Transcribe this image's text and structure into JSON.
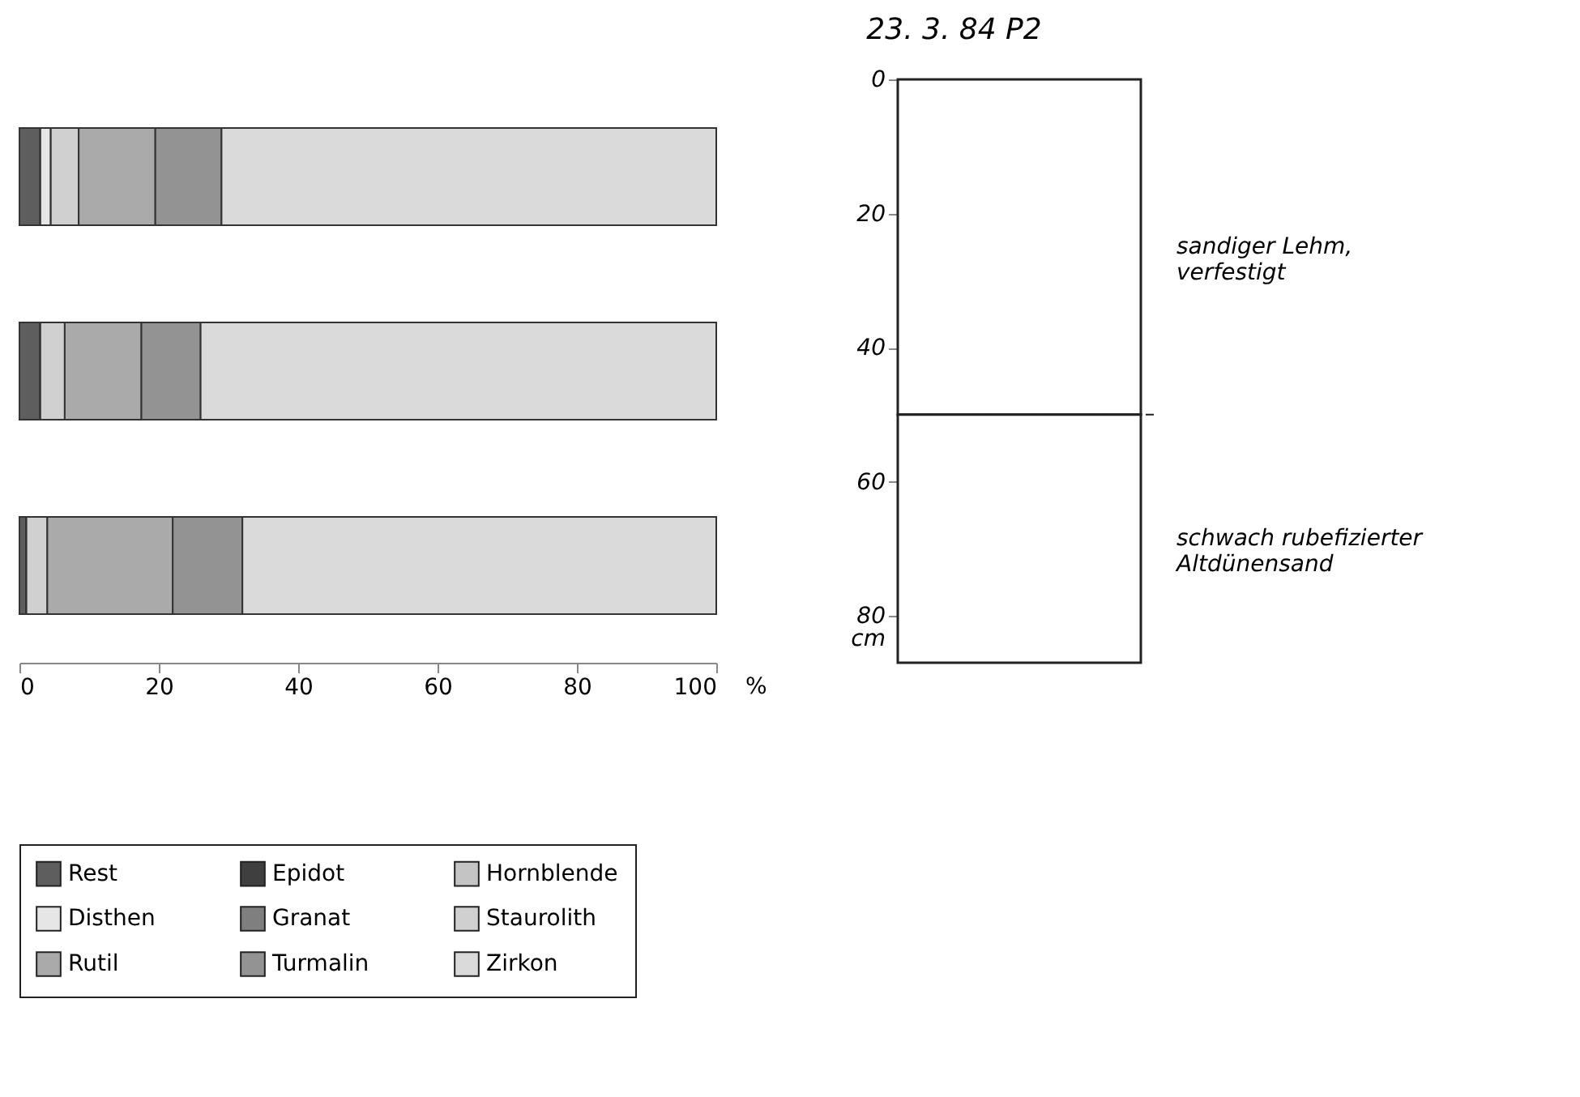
{
  "chart_data": [
    {
      "type": "bar",
      "orientation": "horizontal",
      "stacked": true,
      "categories": [
        null,
        null,
        null
      ],
      "xlabel": "%",
      "xlim": [
        0,
        100
      ],
      "xticks": [
        0,
        20,
        40,
        60,
        80,
        100
      ],
      "grid": false,
      "legend": "bottom",
      "series": [
        {
          "name": "Rest",
          "color": "#5e5e5e",
          "values": [
            3,
            3,
            1
          ]
        },
        {
          "name": "Epidot",
          "color": "#3f3f3f",
          "values": [
            0,
            0,
            0
          ]
        },
        {
          "name": "Hornblende",
          "color": "#c4c4c4",
          "values": [
            0,
            0,
            0
          ]
        },
        {
          "name": "Disthen",
          "color": "#e6e6e6",
          "values": [
            1.5,
            0,
            0
          ]
        },
        {
          "name": "Granat",
          "color": "#7f7f7f",
          "values": [
            0,
            0,
            0
          ]
        },
        {
          "name": "Staurolith",
          "color": "#d0d0d0",
          "values": [
            4,
            3.5,
            3
          ]
        },
        {
          "name": "Rutil",
          "color": "#aaaaaa",
          "values": [
            11,
            11,
            18
          ]
        },
        {
          "name": "Turmalin",
          "color": "#939393",
          "values": [
            9.5,
            8.5,
            10
          ]
        },
        {
          "name": "Zirkon",
          "color": "#dadada",
          "values": [
            71,
            74,
            68
          ]
        }
      ]
    },
    {
      "type": "bar",
      "stacked": true,
      "title": "23. 3. 84 P2",
      "ylabel": "cm",
      "categories": [
        null
      ],
      "ylim": [
        87,
        0
      ],
      "yticks": [
        0,
        20,
        40,
        60,
        80
      ],
      "grid": false,
      "series": [
        {
          "color": "#ffffff",
          "values": [
            50
          ]
        },
        {
          "color": "#ffffff",
          "values": [
            37
          ]
        }
      ],
      "ref_lines": [
        {
          "axis": "y",
          "value": 50,
          "line_style": "dashed"
        }
      ],
      "annotations": [
        "sandiger Lehm,\nverfestigt",
        "schwach rubefizierter\nAltdünensand"
      ]
    }
  ]
}
